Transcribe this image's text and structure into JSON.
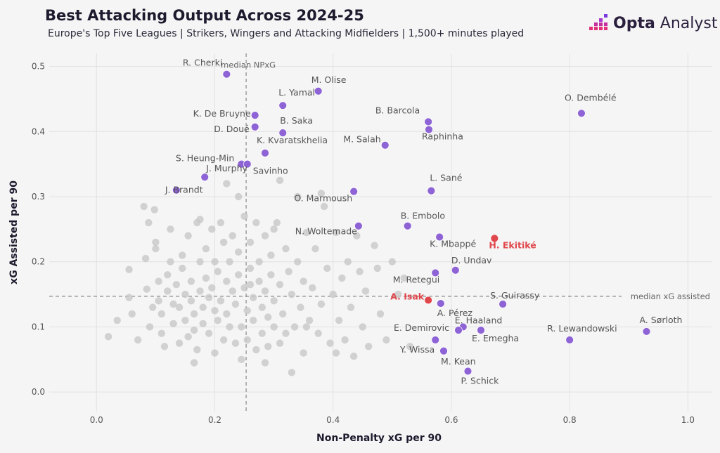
{
  "header": {
    "title": "Best Attacking Output Across 2024-25",
    "subtitle": "Europe's Top Five Leagues | Strikers, Wingers and Attacking Midfielders | 1,500+ minutes played",
    "logo_bold": "Opta",
    "logo_light": " Analyst"
  },
  "chart_data": {
    "type": "scatter",
    "xlabel": "Non-Penalty xG per 90",
    "ylabel": "xG Assisted per 90",
    "xlim": [
      -0.08,
      1.04
    ],
    "ylim": [
      -0.03,
      0.52
    ],
    "xticks": [
      "0.0",
      "0.2",
      "0.4",
      "0.6",
      "0.8",
      "1.0"
    ],
    "yticks": [
      "0.0",
      "0.1",
      "0.2",
      "0.3",
      "0.4",
      "0.5"
    ],
    "grid": true,
    "median_npxg": 0.253,
    "median_npxg_label": "median NPxG",
    "median_xa": 0.147,
    "median_xa_label": "median xG assisted",
    "colors": {
      "highlight": "#e0474c",
      "labelled": "#8e63d6",
      "other": "#c8c8c8"
    },
    "labelled_points": [
      {
        "name": "R. Cherki",
        "x": 0.22,
        "y": 0.488,
        "hl": false
      },
      {
        "name": "M. Olise",
        "x": 0.375,
        "y": 0.462,
        "hl": false
      },
      {
        "name": "L. Yamal",
        "x": 0.315,
        "y": 0.44,
        "hl": false
      },
      {
        "name": "K. De Bruyne",
        "x": 0.268,
        "y": 0.425,
        "hl": false
      },
      {
        "name": "D. Doué",
        "x": 0.268,
        "y": 0.407,
        "hl": false
      },
      {
        "name": "B. Saka",
        "x": 0.315,
        "y": 0.398,
        "hl": false
      },
      {
        "name": "K. Kvaratskhelia",
        "x": 0.285,
        "y": 0.367,
        "hl": false
      },
      {
        "name": "S. Heung-Min",
        "x": 0.245,
        "y": 0.35,
        "hl": false
      },
      {
        "name": "Savinho",
        "x": 0.255,
        "y": 0.35,
        "hl": false
      },
      {
        "name": "J. Murphy",
        "x": 0.183,
        "y": 0.33,
        "hl": false
      },
      {
        "name": "J. Brandt",
        "x": 0.135,
        "y": 0.31,
        "hl": false
      },
      {
        "name": "O. Marmoush",
        "x": 0.435,
        "y": 0.308,
        "hl": false
      },
      {
        "name": "M. Salah",
        "x": 0.488,
        "y": 0.379,
        "hl": false
      },
      {
        "name": "B. Barcola",
        "x": 0.561,
        "y": 0.415,
        "hl": false
      },
      {
        "name": "Raphinha",
        "x": 0.562,
        "y": 0.403,
        "hl": false
      },
      {
        "name": "L. Sané",
        "x": 0.566,
        "y": 0.309,
        "hl": false
      },
      {
        "name": "O. Dembélé",
        "x": 0.82,
        "y": 0.428,
        "hl": false
      },
      {
        "name": "B. Embolo",
        "x": 0.526,
        "y": 0.255,
        "hl": false
      },
      {
        "name": "N. Woltemade",
        "x": 0.443,
        "y": 0.255,
        "hl": false
      },
      {
        "name": "K. Mbappé",
        "x": 0.58,
        "y": 0.238,
        "hl": false
      },
      {
        "name": "H. Ekitiké",
        "x": 0.673,
        "y": 0.236,
        "hl": true
      },
      {
        "name": "D. Undav",
        "x": 0.607,
        "y": 0.187,
        "hl": false
      },
      {
        "name": "M. Retegui",
        "x": 0.573,
        "y": 0.183,
        "hl": false
      },
      {
        "name": "A. Isak",
        "x": 0.561,
        "y": 0.141,
        "hl": true
      },
      {
        "name": "A. Pérez",
        "x": 0.582,
        "y": 0.136,
        "hl": false
      },
      {
        "name": "S. Guirassy",
        "x": 0.687,
        "y": 0.135,
        "hl": false
      },
      {
        "name": "E. Haaland",
        "x": 0.62,
        "y": 0.1,
        "hl": false
      },
      {
        "name": "E. Demirovic",
        "x": 0.612,
        "y": 0.095,
        "hl": false
      },
      {
        "name": "E. Emegha",
        "x": 0.65,
        "y": 0.095,
        "hl": false
      },
      {
        "name": "Y. Wissa",
        "x": 0.573,
        "y": 0.08,
        "hl": false
      },
      {
        "name": "M. Kean",
        "x": 0.587,
        "y": 0.063,
        "hl": false
      },
      {
        "name": "P. Schick",
        "x": 0.628,
        "y": 0.032,
        "hl": false
      },
      {
        "name": "R. Lewandowski",
        "x": 0.8,
        "y": 0.08,
        "hl": false
      },
      {
        "name": "A. Sørloth",
        "x": 0.93,
        "y": 0.093,
        "hl": false
      }
    ],
    "other_points": [
      [
        0.02,
        0.085
      ],
      [
        0.055,
        0.188
      ],
      [
        0.055,
        0.145
      ],
      [
        0.07,
        0.08
      ],
      [
        0.08,
        0.285
      ],
      [
        0.083,
        0.205
      ],
      [
        0.085,
        0.158
      ],
      [
        0.088,
        0.26
      ],
      [
        0.09,
        0.1
      ],
      [
        0.095,
        0.13
      ],
      [
        0.098,
        0.28
      ],
      [
        0.1,
        0.23
      ],
      [
        0.1,
        0.22
      ],
      [
        0.105,
        0.17
      ],
      [
        0.105,
        0.14
      ],
      [
        0.11,
        0.09
      ],
      [
        0.11,
        0.12
      ],
      [
        0.115,
        0.07
      ],
      [
        0.12,
        0.18
      ],
      [
        0.12,
        0.155
      ],
      [
        0.125,
        0.25
      ],
      [
        0.125,
        0.2
      ],
      [
        0.13,
        0.135
      ],
      [
        0.13,
        0.105
      ],
      [
        0.135,
        0.165
      ],
      [
        0.14,
        0.13
      ],
      [
        0.14,
        0.075
      ],
      [
        0.145,
        0.21
      ],
      [
        0.145,
        0.19
      ],
      [
        0.15,
        0.15
      ],
      [
        0.15,
        0.11
      ],
      [
        0.155,
        0.24
      ],
      [
        0.155,
        0.085
      ],
      [
        0.16,
        0.17
      ],
      [
        0.16,
        0.14
      ],
      [
        0.165,
        0.12
      ],
      [
        0.165,
        0.095
      ],
      [
        0.17,
        0.26
      ],
      [
        0.17,
        0.065
      ],
      [
        0.175,
        0.2
      ],
      [
        0.175,
        0.155
      ],
      [
        0.18,
        0.13
      ],
      [
        0.18,
        0.105
      ],
      [
        0.185,
        0.22
      ],
      [
        0.185,
        0.175
      ],
      [
        0.19,
        0.145
      ],
      [
        0.19,
        0.09
      ],
      [
        0.195,
        0.25
      ],
      [
        0.195,
        0.16
      ],
      [
        0.2,
        0.2
      ],
      [
        0.2,
        0.125
      ],
      [
        0.2,
        0.06
      ],
      [
        0.205,
        0.185
      ],
      [
        0.205,
        0.11
      ],
      [
        0.21,
        0.26
      ],
      [
        0.21,
        0.14
      ],
      [
        0.215,
        0.23
      ],
      [
        0.215,
        0.08
      ],
      [
        0.22,
        0.17
      ],
      [
        0.22,
        0.12
      ],
      [
        0.225,
        0.2
      ],
      [
        0.225,
        0.1
      ],
      [
        0.23,
        0.24
      ],
      [
        0.23,
        0.155
      ],
      [
        0.235,
        0.135
      ],
      [
        0.235,
        0.075
      ],
      [
        0.24,
        0.215
      ],
      [
        0.24,
        0.18
      ],
      [
        0.245,
        0.1
      ],
      [
        0.245,
        0.05
      ],
      [
        0.25,
        0.27
      ],
      [
        0.25,
        0.16
      ],
      [
        0.255,
        0.125
      ],
      [
        0.255,
        0.08
      ],
      [
        0.26,
        0.23
      ],
      [
        0.26,
        0.19
      ],
      [
        0.265,
        0.145
      ],
      [
        0.265,
        0.11
      ],
      [
        0.27,
        0.26
      ],
      [
        0.27,
        0.065
      ],
      [
        0.275,
        0.2
      ],
      [
        0.275,
        0.17
      ],
      [
        0.28,
        0.13
      ],
      [
        0.28,
        0.09
      ],
      [
        0.285,
        0.24
      ],
      [
        0.285,
        0.155
      ],
      [
        0.29,
        0.115
      ],
      [
        0.29,
        0.07
      ],
      [
        0.295,
        0.21
      ],
      [
        0.295,
        0.18
      ],
      [
        0.3,
        0.14
      ],
      [
        0.3,
        0.1
      ],
      [
        0.305,
        0.26
      ],
      [
        0.31,
        0.165
      ],
      [
        0.31,
        0.075
      ],
      [
        0.315,
        0.12
      ],
      [
        0.32,
        0.22
      ],
      [
        0.32,
        0.09
      ],
      [
        0.325,
        0.185
      ],
      [
        0.33,
        0.15
      ],
      [
        0.33,
        0.03
      ],
      [
        0.335,
        0.1
      ],
      [
        0.34,
        0.3
      ],
      [
        0.34,
        0.2
      ],
      [
        0.345,
        0.13
      ],
      [
        0.35,
        0.17
      ],
      [
        0.35,
        0.06
      ],
      [
        0.355,
        0.245
      ],
      [
        0.36,
        0.11
      ],
      [
        0.365,
        0.16
      ],
      [
        0.37,
        0.22
      ],
      [
        0.375,
        0.09
      ],
      [
        0.38,
        0.135
      ],
      [
        0.385,
        0.285
      ],
      [
        0.39,
        0.19
      ],
      [
        0.395,
        0.075
      ],
      [
        0.4,
        0.15
      ],
      [
        0.405,
        0.245
      ],
      [
        0.41,
        0.11
      ],
      [
        0.415,
        0.175
      ],
      [
        0.42,
        0.08
      ],
      [
        0.425,
        0.2
      ],
      [
        0.43,
        0.13
      ],
      [
        0.435,
        0.055
      ],
      [
        0.44,
        0.24
      ],
      [
        0.445,
        0.185
      ],
      [
        0.45,
        0.1
      ],
      [
        0.455,
        0.155
      ],
      [
        0.46,
        0.07
      ],
      [
        0.47,
        0.225
      ],
      [
        0.475,
        0.19
      ],
      [
        0.48,
        0.12
      ],
      [
        0.49,
        0.08
      ],
      [
        0.5,
        0.2
      ],
      [
        0.51,
        0.15
      ],
      [
        0.52,
        0.175
      ],
      [
        0.53,
        0.07
      ],
      [
        0.035,
        0.11
      ],
      [
        0.06,
        0.12
      ],
      [
        0.24,
        0.3
      ],
      [
        0.22,
        0.32
      ],
      [
        0.38,
        0.305
      ],
      [
        0.31,
        0.325
      ],
      [
        0.175,
        0.265
      ],
      [
        0.26,
        0.165
      ],
      [
        0.165,
        0.045
      ],
      [
        0.285,
        0.045
      ],
      [
        0.355,
        0.1
      ],
      [
        0.405,
        0.06
      ],
      [
        0.3,
        0.25
      ]
    ]
  }
}
